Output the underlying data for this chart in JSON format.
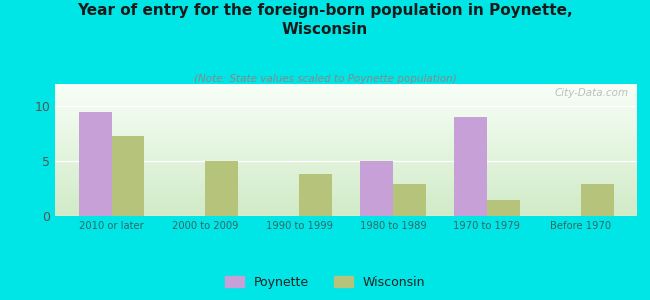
{
  "title": "Year of entry for the foreign-born population in Poynette,\nWisconsin",
  "subtitle": "(Note: State values scaled to Poynette population)",
  "categories": [
    "2010 or later",
    "2000 to 2009",
    "1990 to 1999",
    "1980 to 1989",
    "1970 to 1979",
    "Before 1970"
  ],
  "poynette_values": [
    9.5,
    0,
    0,
    5.0,
    9.0,
    0
  ],
  "wisconsin_values": [
    7.3,
    5.0,
    3.8,
    2.9,
    1.5,
    2.9
  ],
  "poynette_color": "#c8a0d8",
  "wisconsin_color": "#b5c47a",
  "background_outer": "#00e5e5",
  "background_inner_top": "#f0f8f0",
  "background_inner_bottom": "#d0e8c8",
  "ylim": [
    0,
    12
  ],
  "yticks": [
    0,
    5,
    10
  ],
  "bar_width": 0.35,
  "watermark": "City-Data.com",
  "legend_labels": [
    "Poynette",
    "Wisconsin"
  ],
  "xtick_color": "#336666",
  "ytick_color": "#555555"
}
